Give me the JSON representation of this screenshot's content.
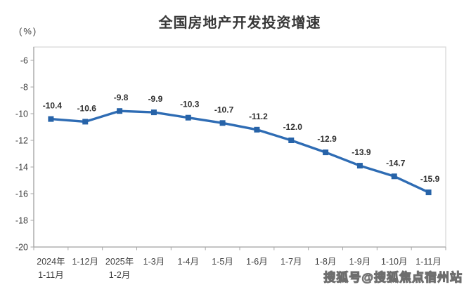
{
  "chart": {
    "title": "全国房地产开发投资增速",
    "unit_label": "(%)"
  },
  "chart_data": {
    "type": "line",
    "title": "全国房地产开发投资增速",
    "xlabel": "",
    "ylabel": "(%)",
    "categories": [
      "2024年\n1-11月",
      "1-12月",
      "2025年\n1-2月",
      "1-3月",
      "1-4月",
      "1-5月",
      "1-6月",
      "1-7月",
      "1-8月",
      "1-9月",
      "1-10月",
      "1-11月"
    ],
    "values": [
      -10.4,
      -10.6,
      -9.8,
      -9.9,
      -10.3,
      -10.7,
      -11.2,
      -12.0,
      -12.9,
      -13.9,
      -14.7,
      -15.9
    ],
    "point_labels": [
      "-10.4",
      "-10.6",
      "-9.8",
      "-9.9",
      "-10.3",
      "-10.7",
      "-11.2",
      "-12.0",
      "-12.9",
      "-13.9",
      "-14.7",
      "-15.9"
    ],
    "ylim": [
      -20,
      -5
    ],
    "yticks": [
      -6,
      -8,
      -10,
      -12,
      -14,
      -16,
      -18,
      -20
    ],
    "grid": false,
    "legend": false,
    "marker": "square",
    "colors": {
      "line": "#2e6cb4",
      "marker": "#2763a8",
      "data_label": "#303030",
      "axis": "#a6a6a6",
      "plot_border": "#d9d9d9",
      "tick_label": "#3f3f3f",
      "title": "#373737"
    }
  },
  "watermark": {
    "text": "搜狐号@搜狐焦点宿州站"
  }
}
